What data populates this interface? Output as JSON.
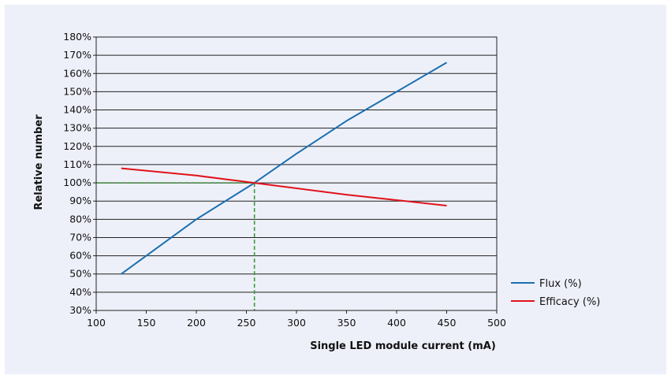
{
  "chart_data": {
    "type": "line",
    "xlabel": "Single LED module current (mA)",
    "ylabel": "Relative number",
    "xlim": [
      100,
      500
    ],
    "ylim": [
      30,
      180
    ],
    "x_ticks": [
      "100",
      "150",
      "200",
      "250",
      "300",
      "350",
      "400",
      "450",
      "500"
    ],
    "y_ticks": [
      "30%",
      "40%",
      "50%",
      "60%",
      "70%",
      "80%",
      "90%",
      "100%",
      "110%",
      "120%",
      "130%",
      "140%",
      "150%",
      "160%",
      "170%",
      "180%"
    ],
    "grid": "horizontal",
    "legend_position": "right",
    "series": [
      {
        "name": "Flux (%)",
        "color": "#1a6fb0",
        "points": [
          [
            125,
            50
          ],
          [
            200,
            80
          ],
          [
            258,
            100
          ],
          [
            300,
            116
          ],
          [
            350,
            134
          ],
          [
            400,
            150
          ],
          [
            450,
            166
          ]
        ]
      },
      {
        "name": "Efficacy (%)",
        "color": "#e0121b",
        "points": [
          [
            125,
            108
          ],
          [
            200,
            104
          ],
          [
            258,
            100
          ],
          [
            350,
            93.5
          ],
          [
            400,
            90.5
          ],
          [
            450,
            87.5
          ]
        ]
      }
    ],
    "reference_lines": {
      "color": "#3a9b3a",
      "x": 258,
      "y": 100
    }
  }
}
